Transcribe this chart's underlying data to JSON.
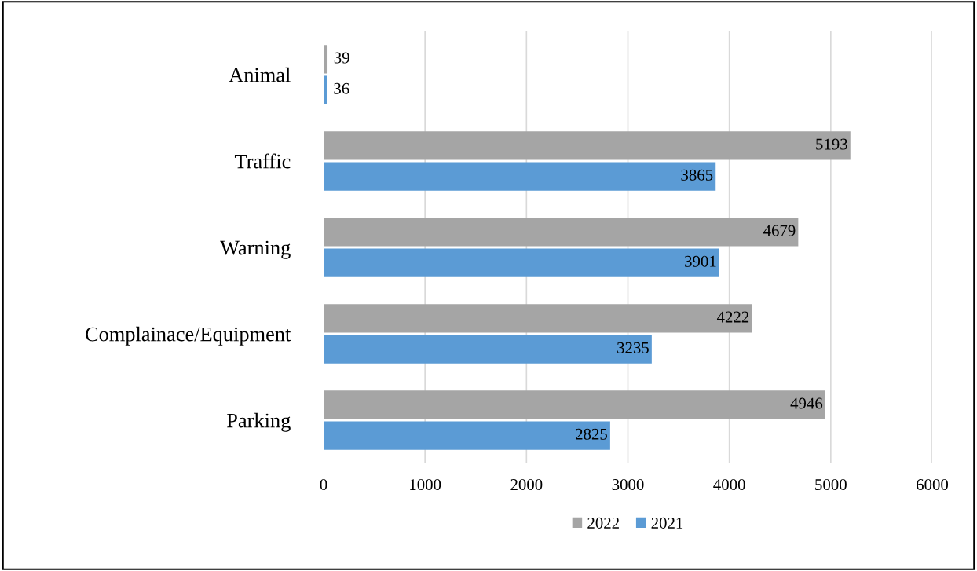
{
  "chart_data": {
    "type": "bar",
    "orientation": "horizontal",
    "categories": [
      "Animal",
      "Traffic",
      "Warning",
      "Complainace/Equipment",
      "Parking"
    ],
    "series": [
      {
        "name": "2022",
        "color": "#a5a5a5",
        "values": [
          39,
          5193,
          4679,
          4222,
          4946
        ]
      },
      {
        "name": "2021",
        "color": "#5b9bd5",
        "values": [
          36,
          3865,
          3901,
          3235,
          2825
        ]
      }
    ],
    "xlim": [
      0,
      6000
    ],
    "xticks": [
      0,
      1000,
      2000,
      3000,
      4000,
      5000,
      6000
    ],
    "grid": "x",
    "legend": "bottom",
    "data_labels": true
  }
}
